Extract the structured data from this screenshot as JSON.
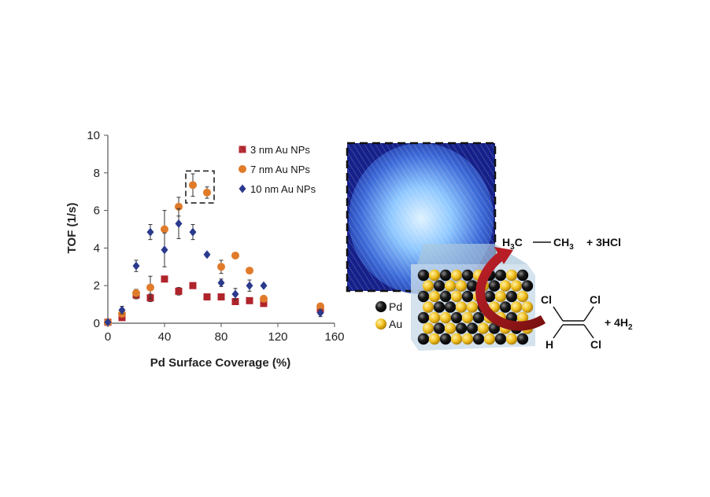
{
  "chart_data": {
    "type": "scatter",
    "xlabel": "Pd Surface Coverage (%)",
    "ylabel": "TOF (1/s)",
    "xlim": [
      0,
      160
    ],
    "ylim": [
      0,
      10
    ],
    "xticks": [
      0,
      40,
      80,
      120,
      160
    ],
    "yticks": [
      0,
      2,
      4,
      6,
      8,
      10
    ],
    "grid": false,
    "legend_position": "top-right",
    "series": [
      {
        "name": "3 nm Au NPs",
        "marker": "square",
        "color": "#b0242c",
        "points": [
          {
            "x": 0,
            "y": 0.05,
            "err": 0
          },
          {
            "x": 10,
            "y": 0.3,
            "err": 0.1
          },
          {
            "x": 20,
            "y": 1.5,
            "err": 0.2
          },
          {
            "x": 30,
            "y": 1.35,
            "err": 0.2
          },
          {
            "x": 40,
            "y": 2.35,
            "err": 0.1
          },
          {
            "x": 50,
            "y": 1.7,
            "err": 0.2
          },
          {
            "x": 60,
            "y": 2.0,
            "err": 0.15
          },
          {
            "x": 70,
            "y": 1.4,
            "err": 0.1
          },
          {
            "x": 80,
            "y": 1.4,
            "err": 0.1
          },
          {
            "x": 90,
            "y": 1.15,
            "err": 0.1
          },
          {
            "x": 100,
            "y": 1.2,
            "err": 0.1
          },
          {
            "x": 110,
            "y": 1.05,
            "err": 0.1
          },
          {
            "x": 150,
            "y": 0.75,
            "err": 0.1
          }
        ]
      },
      {
        "name": "7 nm Au NPs",
        "marker": "circle",
        "color": "#e07b2a",
        "points": [
          {
            "x": 0,
            "y": 0.05,
            "err": 0
          },
          {
            "x": 10,
            "y": 0.5,
            "err": 0.15
          },
          {
            "x": 20,
            "y": 1.6,
            "err": 0.2
          },
          {
            "x": 30,
            "y": 1.9,
            "err": 0.6
          },
          {
            "x": 40,
            "y": 5.0,
            "err": 1.0
          },
          {
            "x": 50,
            "y": 6.2,
            "err": 0.5
          },
          {
            "x": 60,
            "y": 7.35,
            "err": 0.6
          },
          {
            "x": 70,
            "y": 6.95,
            "err": 0.3
          },
          {
            "x": 80,
            "y": 3.0,
            "err": 0.35
          },
          {
            "x": 90,
            "y": 3.6,
            "err": 0.1
          },
          {
            "x": 100,
            "y": 2.8,
            "err": 0.1
          },
          {
            "x": 110,
            "y": 1.3,
            "err": 0.1
          },
          {
            "x": 150,
            "y": 0.9,
            "err": 0.1
          }
        ]
      },
      {
        "name": "10 nm Au NPs",
        "marker": "diamond",
        "color": "#2b3a8c",
        "points": [
          {
            "x": 0,
            "y": 0.05,
            "err": 0
          },
          {
            "x": 10,
            "y": 0.7,
            "err": 0.2
          },
          {
            "x": 20,
            "y": 3.05,
            "err": 0.3
          },
          {
            "x": 30,
            "y": 4.85,
            "err": 0.4
          },
          {
            "x": 40,
            "y": 3.9,
            "err": 0.9
          },
          {
            "x": 50,
            "y": 5.3,
            "err": 0.8
          },
          {
            "x": 60,
            "y": 4.85,
            "err": 0.4
          },
          {
            "x": 70,
            "y": 3.65,
            "err": 0.1
          },
          {
            "x": 80,
            "y": 2.15,
            "err": 0.2
          },
          {
            "x": 90,
            "y": 1.55,
            "err": 0.3
          },
          {
            "x": 100,
            "y": 2.0,
            "err": 0.3
          },
          {
            "x": 110,
            "y": 2.0,
            "err": 0.1
          },
          {
            "x": 150,
            "y": 0.55,
            "err": 0.2
          }
        ]
      }
    ],
    "annotation": {
      "type": "dashed-box",
      "x_range": [
        55,
        75
      ],
      "y_range": [
        6.4,
        8.1
      ]
    }
  },
  "schematic": {
    "legend": [
      {
        "label": "Pd",
        "color": "#111111"
      },
      {
        "label": "Au",
        "color": "#e8b820"
      }
    ],
    "product": {
      "h3c": "H",
      "h3c_sub": "3",
      "h3c_c": "C",
      "ch3": "CH",
      "ch3_sub": "3",
      "hcl": "+ 3HCl"
    },
    "reactant": {
      "cl": "Cl",
      "h": "H",
      "h2": "+ 4H",
      "h2_sub": "2"
    }
  }
}
